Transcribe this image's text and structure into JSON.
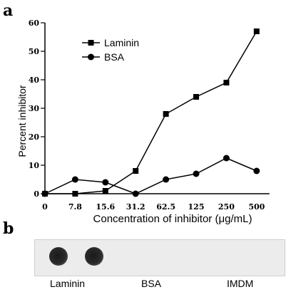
{
  "panels": {
    "a_label": "a",
    "b_label": "b"
  },
  "chart_data": {
    "type": "line",
    "title": "",
    "xlabel": "Concentration of inhibitor (μg/mL)",
    "ylabel": "Percent inhibitor",
    "categories": [
      "0",
      "7.8",
      "15.6",
      "31.2",
      "62.5",
      "125",
      "250",
      "500"
    ],
    "ylim": [
      0,
      60
    ],
    "yticks": [
      0,
      10,
      20,
      30,
      40,
      50,
      60
    ],
    "grid": false,
    "legend_position": "top-left",
    "series": [
      {
        "name": "Laminin",
        "marker": "square",
        "values": [
          0,
          0,
          1,
          8,
          28,
          34,
          39,
          57
        ]
      },
      {
        "name": "BSA",
        "marker": "circle",
        "values": [
          0,
          5,
          4,
          0,
          5,
          7,
          12.5,
          8
        ]
      }
    ]
  },
  "blot": {
    "lanes": [
      "Laminin",
      "BSA",
      "IMDM"
    ],
    "spot_color": "#1e1e1e"
  }
}
